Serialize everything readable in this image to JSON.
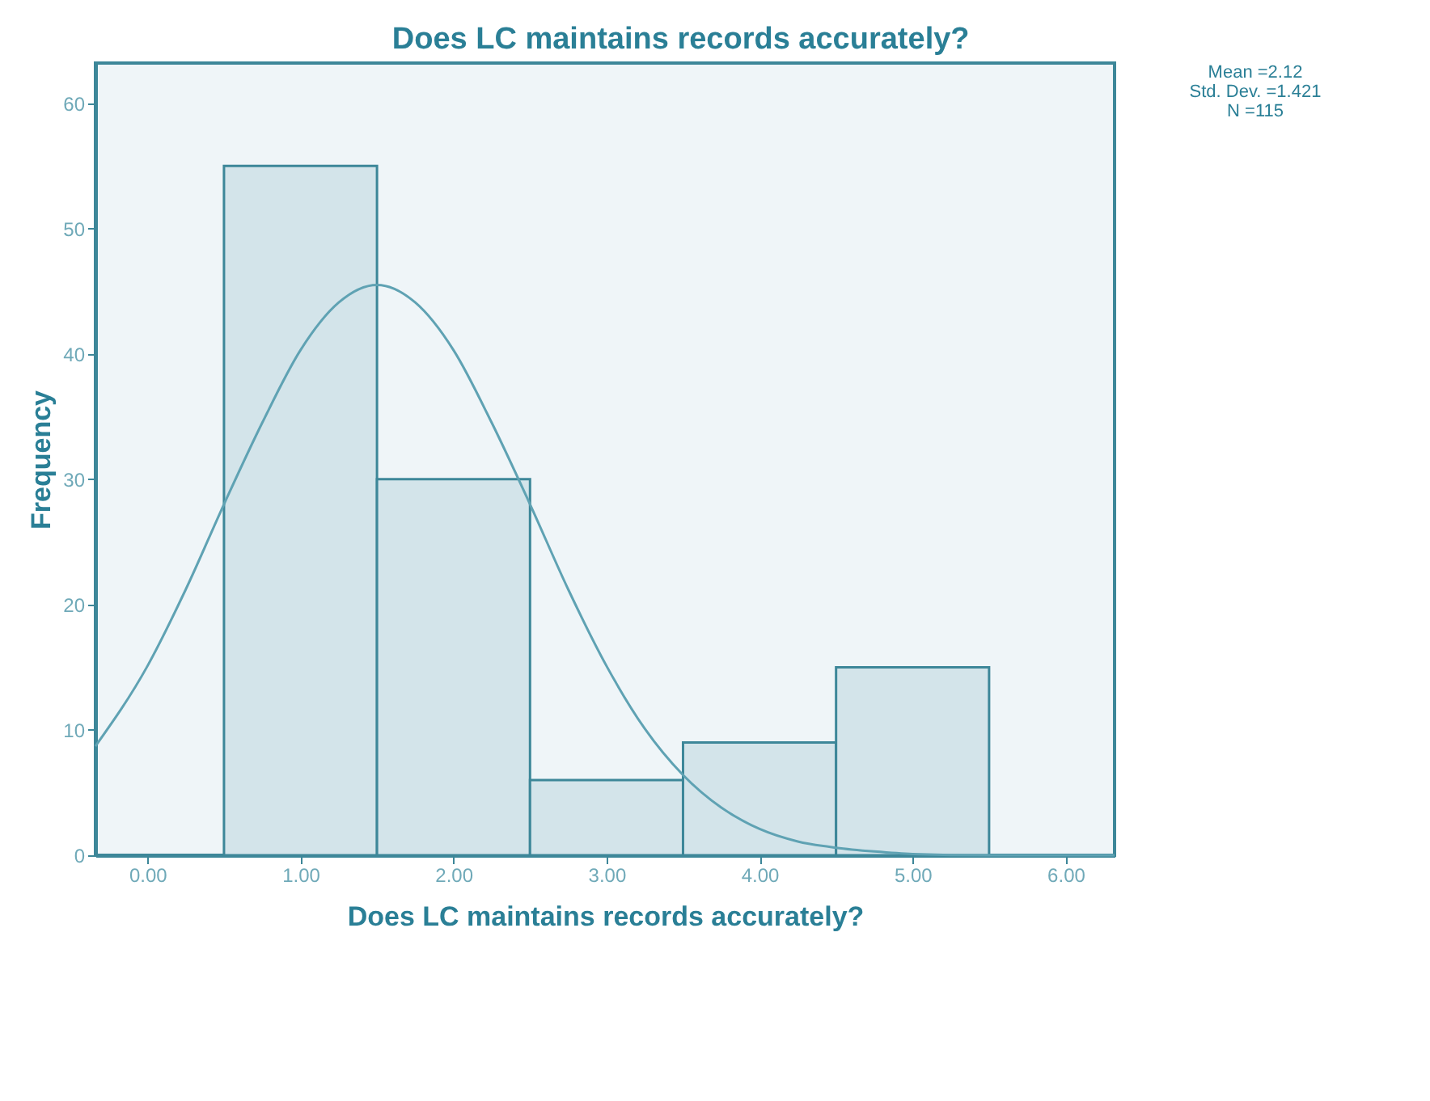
{
  "chart_data": {
    "type": "histogram",
    "title": "Does LC  maintains records accurately?",
    "xlabel": "Does LC  maintains records accurately?",
    "ylabel": "Frequency",
    "bins": [
      0.5,
      1.5,
      2.5,
      3.5,
      4.5,
      5.5
    ],
    "values": [
      55,
      30,
      6,
      9,
      15
    ],
    "color": "#d3e4ea",
    "series": [
      {
        "type": "line",
        "color": "#5fa2b3",
        "x": [
          -0.34,
          0,
          0.25,
          0.5,
          0.75,
          1.0,
          1.25,
          1.5,
          1.75,
          2.0,
          2.25,
          2.5,
          2.75,
          3.0,
          3.25,
          3.5,
          3.75,
          4.0,
          4.25,
          4.5,
          4.75,
          5.0,
          5.5,
          6.32
        ],
        "values": [
          8.7,
          15.1,
          21.2,
          28.0,
          34.5,
          40.3,
          44.1,
          45.5,
          44.1,
          40.3,
          34.5,
          28.0,
          21.2,
          15.1,
          10.1,
          6.4,
          3.8,
          2.1,
          1.1,
          0.6,
          0.3,
          0.1,
          0,
          0
        ]
      }
    ],
    "xlim": [
      -0.34,
      6.32
    ],
    "ylim": [
      0,
      63.2
    ],
    "xticks": [
      {
        "value": 0,
        "label": "0.00"
      },
      {
        "value": 1,
        "label": "1.00"
      },
      {
        "value": 2,
        "label": "2.00"
      },
      {
        "value": 3,
        "label": "3.00"
      },
      {
        "value": 4,
        "label": "4.00"
      },
      {
        "value": 5,
        "label": "5.00"
      },
      {
        "value": 6,
        "label": "6.00"
      }
    ],
    "yticks": [
      0,
      10,
      20,
      30,
      40,
      50,
      60
    ],
    "grid": false,
    "annotations": [
      "Mean =2.12",
      "Std. Dev. =1.421",
      "N =115"
    ]
  }
}
